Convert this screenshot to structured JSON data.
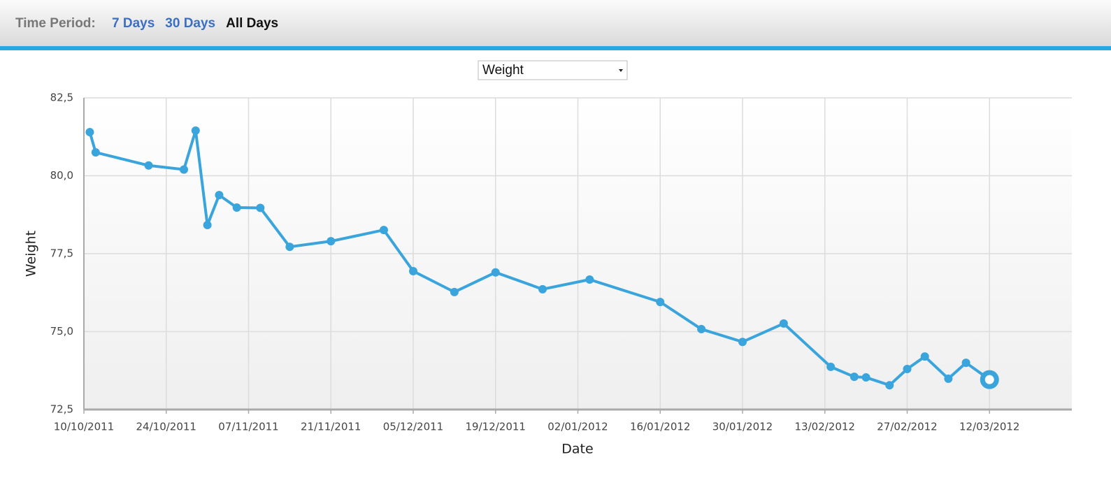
{
  "toolbar": {
    "label": "Time Period:",
    "options": [
      "7 Days",
      "30 Days",
      "All Days"
    ],
    "active": 2
  },
  "selector": {
    "selected": "Weight"
  },
  "chart_data": {
    "type": "line",
    "x_label": "Date",
    "y_label": "Weight",
    "x": [
      "2011-10-11",
      "2011-10-12",
      "2011-10-21",
      "2011-10-27",
      "2011-10-29",
      "2011-10-31",
      "2011-11-02",
      "2011-11-05",
      "2011-11-09",
      "2011-11-14",
      "2011-11-21",
      "2011-11-30",
      "2011-12-05",
      "2011-12-12",
      "2011-12-19",
      "2011-12-27",
      "2012-01-04",
      "2012-01-16",
      "2012-01-23",
      "2012-01-30",
      "2012-02-06",
      "2012-02-14",
      "2012-02-18",
      "2012-02-20",
      "2012-02-24",
      "2012-02-27",
      "2012-03-01",
      "2012-03-05",
      "2012-03-08",
      "2012-03-12"
    ],
    "values": [
      81.4,
      80.75,
      80.33,
      80.2,
      81.45,
      78.42,
      79.38,
      78.98,
      78.97,
      77.72,
      77.9,
      78.26,
      76.94,
      76.27,
      76.9,
      76.36,
      76.67,
      75.95,
      75.08,
      74.67,
      75.26,
      73.87,
      73.55,
      73.53,
      73.28,
      73.8,
      74.2,
      73.49,
      74.0,
      73.46
    ],
    "color": "#3aa4dc",
    "xlim": [
      "2011-10-10",
      "2012-03-26"
    ],
    "xticks": [
      {
        "value": "2011-10-10",
        "label": "10/10/2011"
      },
      {
        "value": "2011-10-24",
        "label": "24/10/2011"
      },
      {
        "value": "2011-11-07",
        "label": "07/11/2011"
      },
      {
        "value": "2011-11-21",
        "label": "21/11/2011"
      },
      {
        "value": "2011-12-05",
        "label": "05/12/2011"
      },
      {
        "value": "2011-12-19",
        "label": "19/12/2011"
      },
      {
        "value": "2012-01-02",
        "label": "02/01/2012"
      },
      {
        "value": "2012-01-16",
        "label": "16/01/2012"
      },
      {
        "value": "2012-01-30",
        "label": "30/01/2012"
      },
      {
        "value": "2012-02-13",
        "label": "13/02/2012"
      },
      {
        "value": "2012-02-27",
        "label": "27/02/2012"
      },
      {
        "value": "2012-03-12",
        "label": "12/03/2012"
      }
    ],
    "ylim": [
      72.5,
      82.5
    ],
    "yticks": [
      {
        "value": 72.5,
        "label": "72,5"
      },
      {
        "value": 75.0,
        "label": "75,0"
      },
      {
        "value": 77.5,
        "label": "77,5"
      },
      {
        "value": 80.0,
        "label": "80,0"
      },
      {
        "value": 82.5,
        "label": "82,5"
      }
    ],
    "grid": true
  }
}
